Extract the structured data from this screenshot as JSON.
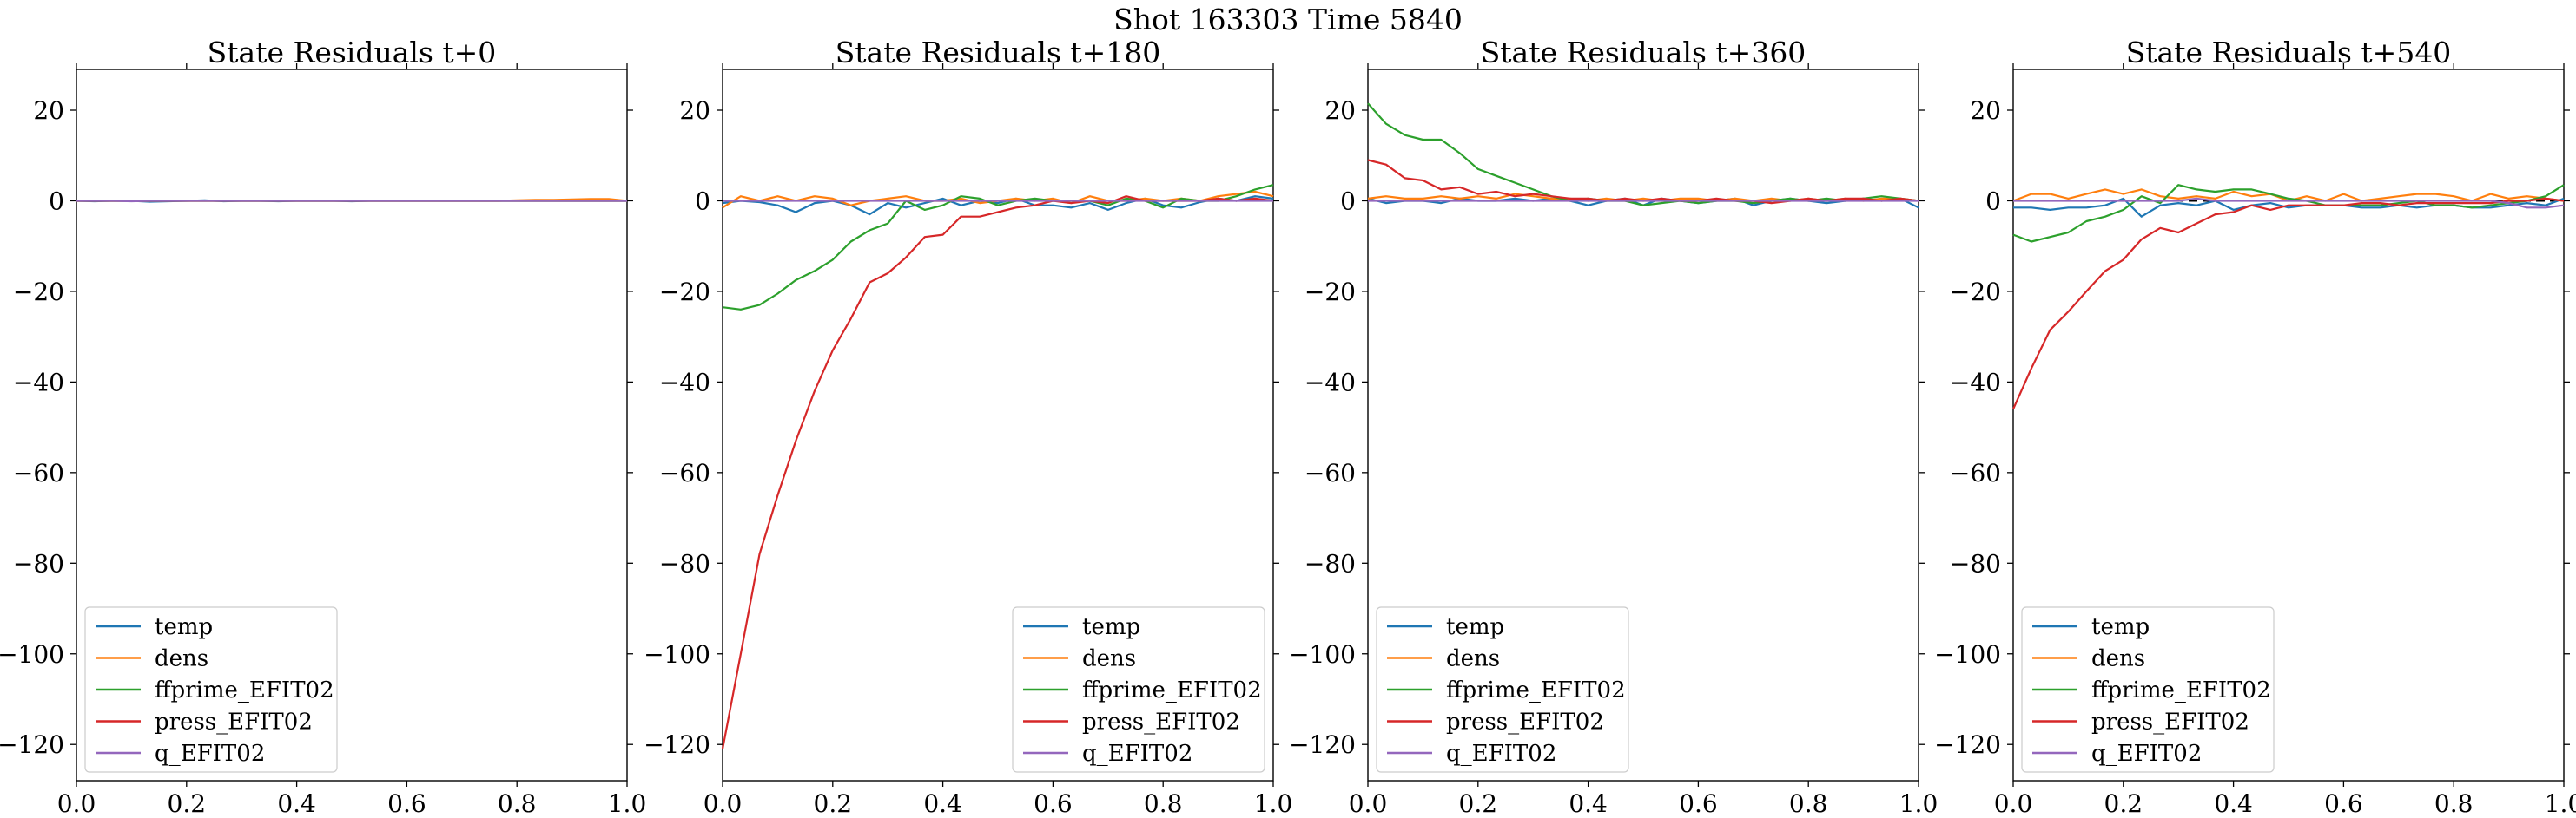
{
  "title": "Shot 163303   Time 5840",
  "chart_data": {
    "type": "line",
    "suptitle": "Shot 163303   Time 5840",
    "xlim": [
      0.0,
      1.0
    ],
    "ylim": [
      -128,
      29
    ],
    "xticks": [
      0.0,
      0.2,
      0.4,
      0.6,
      0.8,
      1.0
    ],
    "xtick_labels": [
      "0.0",
      "0.2",
      "0.4",
      "0.6",
      "0.8",
      "1.0"
    ],
    "yticks": [
      20,
      0,
      -20,
      -40,
      -60,
      -80,
      -100,
      -120
    ],
    "ytick_labels": [
      "20",
      "0",
      "−20",
      "−40",
      "−60",
      "−80",
      "−100",
      "−120"
    ],
    "series_colors": {
      "temp": "#1f77b4",
      "dens": "#ff7f0e",
      "ffprime_EFIT02": "#2ca02c",
      "press_EFIT02": "#d62728",
      "q_EFIT02": "#9467bd"
    },
    "panels": [
      {
        "title": "State Residuals t+0",
        "legend_position": "lower-left",
        "x": [
          0.0,
          0.033,
          0.067,
          0.1,
          0.133,
          0.167,
          0.2,
          0.233,
          0.267,
          0.3,
          0.333,
          0.367,
          0.4,
          0.433,
          0.467,
          0.5,
          0.533,
          0.567,
          0.6,
          0.633,
          0.667,
          0.7,
          0.733,
          0.767,
          0.8,
          0.833,
          0.867,
          0.9,
          0.933,
          0.967,
          1.0
        ],
        "series": [
          {
            "name": "temp",
            "values": [
              0.0,
              -0.1,
              0.0,
              0.0,
              -0.2,
              -0.1,
              0.0,
              0.1,
              -0.1,
              0.0,
              0.0,
              -0.1,
              0.0,
              0.0,
              0.0,
              -0.1,
              0.0,
              0.0,
              0.0,
              0.0,
              0.0,
              0.0,
              0.0,
              0.0,
              0.0,
              0.0,
              0.0,
              0.0,
              0.0,
              0.0,
              0.0
            ]
          },
          {
            "name": "dens",
            "values": [
              0.0,
              0.0,
              0.0,
              0.0,
              0.0,
              0.0,
              0.0,
              0.0,
              0.0,
              0.0,
              0.0,
              0.0,
              0.0,
              0.0,
              0.0,
              0.0,
              0.0,
              0.0,
              0.0,
              0.0,
              0.0,
              0.0,
              0.0,
              0.0,
              0.1,
              0.2,
              0.2,
              0.3,
              0.4,
              0.4,
              0.0
            ]
          },
          {
            "name": "ffprime_EFIT02",
            "values": [
              0.0,
              0.0,
              0.0,
              0.0,
              0.0,
              0.0,
              0.0,
              0.0,
              0.0,
              0.0,
              0.0,
              0.0,
              0.0,
              0.0,
              0.0,
              0.0,
              0.0,
              0.0,
              0.0,
              0.0,
              0.0,
              0.0,
              0.0,
              0.0,
              0.0,
              0.0,
              0.0,
              0.0,
              0.0,
              0.0,
              0.0
            ]
          },
          {
            "name": "press_EFIT02",
            "values": [
              0.0,
              0.0,
              0.0,
              0.0,
              0.0,
              0.0,
              0.0,
              0.0,
              0.0,
              0.0,
              0.0,
              0.0,
              0.0,
              0.0,
              0.0,
              0.0,
              0.0,
              0.0,
              0.0,
              0.0,
              0.0,
              0.0,
              0.0,
              0.0,
              0.0,
              0.0,
              0.0,
              0.0,
              0.0,
              0.0,
              0.0
            ]
          },
          {
            "name": "q_EFIT02",
            "values": [
              0.0,
              0.0,
              0.0,
              -0.1,
              0.0,
              0.0,
              0.0,
              0.0,
              0.0,
              0.0,
              0.0,
              0.0,
              0.0,
              0.0,
              0.0,
              0.0,
              0.0,
              0.0,
              0.0,
              0.0,
              0.0,
              0.0,
              0.0,
              0.0,
              0.0,
              0.0,
              0.0,
              0.0,
              0.0,
              0.0,
              0.0
            ]
          }
        ]
      },
      {
        "title": "State Residuals t+180",
        "legend_position": "lower-right",
        "x": [
          0.0,
          0.033,
          0.067,
          0.1,
          0.133,
          0.167,
          0.2,
          0.233,
          0.267,
          0.3,
          0.333,
          0.367,
          0.4,
          0.433,
          0.467,
          0.5,
          0.533,
          0.567,
          0.6,
          0.633,
          0.667,
          0.7,
          0.733,
          0.767,
          0.8,
          0.833,
          0.867,
          0.9,
          0.933,
          0.967,
          1.0
        ],
        "series": [
          {
            "name": "temp",
            "values": [
              -0.5,
              0.0,
              -0.3,
              -1.0,
              -2.5,
              -0.5,
              0.0,
              -1.0,
              -3.0,
              -0.5,
              -1.5,
              -0.5,
              0.5,
              -1.0,
              0.0,
              -0.5,
              0.5,
              -1.0,
              -1.0,
              -1.5,
              -0.5,
              -2.0,
              -0.5,
              0.5,
              -1.0,
              -1.5,
              -0.3,
              0.5,
              0.0,
              1.0,
              0.5
            ]
          },
          {
            "name": "dens",
            "values": [
              -1.5,
              1.0,
              0.0,
              1.0,
              0.0,
              1.0,
              0.5,
              -1.0,
              0.0,
              0.5,
              1.0,
              0.0,
              0.0,
              0.5,
              -0.5,
              0.0,
              0.5,
              0.0,
              0.5,
              -0.5,
              1.0,
              0.0,
              0.0,
              0.5,
              0.0,
              0.5,
              0.0,
              1.0,
              1.5,
              2.0,
              1.0
            ]
          },
          {
            "name": "ffprime_EFIT02",
            "values": [
              -23.5,
              -24.0,
              -23.0,
              -20.5,
              -17.5,
              -15.5,
              -13.0,
              -9.0,
              -6.5,
              -5.0,
              0.0,
              -2.0,
              -1.0,
              1.0,
              0.5,
              -1.0,
              0.0,
              0.5,
              0.0,
              0.0,
              0.0,
              -1.0,
              0.5,
              0.0,
              -1.5,
              0.5,
              0.0,
              0.0,
              1.0,
              2.5,
              3.5
            ]
          },
          {
            "name": "press_EFIT02",
            "values": [
              -121.0,
              -100.0,
              -78.0,
              -65.0,
              -53.0,
              -42.0,
              -33.0,
              -26.0,
              -18.0,
              -16.0,
              -12.5,
              -8.0,
              -7.5,
              -3.5,
              -3.5,
              -2.5,
              -1.5,
              -1.0,
              0.0,
              -0.5,
              0.0,
              -0.5,
              1.0,
              0.0,
              0.0,
              0.0,
              0.0,
              0.5,
              0.0,
              0.5,
              0.0
            ]
          },
          {
            "name": "q_EFIT02",
            "values": [
              0.0,
              0.0,
              0.0,
              0.0,
              0.0,
              0.0,
              0.0,
              0.0,
              0.0,
              0.0,
              0.0,
              0.0,
              0.0,
              0.0,
              0.0,
              0.0,
              0.0,
              0.0,
              0.0,
              0.0,
              0.0,
              0.0,
              0.0,
              0.0,
              0.0,
              0.0,
              0.0,
              0.0,
              0.0,
              0.0,
              0.0
            ]
          }
        ]
      },
      {
        "title": "State Residuals t+360",
        "legend_position": "lower-left",
        "x": [
          0.0,
          0.033,
          0.067,
          0.1,
          0.133,
          0.167,
          0.2,
          0.233,
          0.267,
          0.3,
          0.333,
          0.367,
          0.4,
          0.433,
          0.467,
          0.5,
          0.533,
          0.567,
          0.6,
          0.633,
          0.667,
          0.7,
          0.733,
          0.767,
          0.8,
          0.833,
          0.867,
          0.9,
          0.933,
          0.967,
          1.0
        ],
        "series": [
          {
            "name": "temp",
            "values": [
              0.5,
              -0.5,
              0.0,
              0.0,
              -0.5,
              0.5,
              0.0,
              0.0,
              0.5,
              0.0,
              0.5,
              0.0,
              -1.0,
              0.0,
              0.5,
              -1.0,
              0.5,
              0.0,
              -0.5,
              0.0,
              0.5,
              -1.0,
              0.0,
              0.5,
              0.0,
              -0.5,
              0.0,
              0.5,
              0.0,
              0.5,
              -1.5
            ]
          },
          {
            "name": "dens",
            "values": [
              0.5,
              1.0,
              0.5,
              0.5,
              1.0,
              0.5,
              1.0,
              0.5,
              1.5,
              1.0,
              0.5,
              0.5,
              0.0,
              0.5,
              0.0,
              0.5,
              0.0,
              0.5,
              0.5,
              0.0,
              0.5,
              0.0,
              0.5,
              0.0,
              0.5,
              0.0,
              0.5,
              0.0,
              0.5,
              0.5,
              0.0
            ]
          },
          {
            "name": "ffprime_EFIT02",
            "values": [
              21.5,
              17.0,
              14.5,
              13.5,
              13.5,
              10.5,
              7.0,
              5.5,
              4.0,
              2.5,
              1.0,
              0.0,
              0.5,
              0.0,
              0.0,
              -1.0,
              -0.5,
              0.0,
              -0.5,
              0.0,
              0.0,
              -0.5,
              0.0,
              0.5,
              0.0,
              0.5,
              0.0,
              0.5,
              1.0,
              0.5,
              0.0
            ]
          },
          {
            "name": "press_EFIT02",
            "values": [
              9.0,
              8.0,
              5.0,
              4.5,
              2.5,
              3.0,
              1.5,
              2.0,
              1.0,
              1.5,
              1.0,
              0.5,
              0.5,
              0.0,
              0.5,
              0.0,
              0.5,
              0.0,
              0.0,
              0.5,
              0.0,
              0.0,
              -0.5,
              0.0,
              0.5,
              0.0,
              0.5,
              0.5,
              0.0,
              0.5,
              0.0
            ]
          },
          {
            "name": "q_EFIT02",
            "values": [
              0.0,
              0.0,
              0.0,
              0.0,
              0.0,
              0.0,
              0.0,
              0.0,
              0.0,
              0.0,
              0.0,
              0.0,
              0.0,
              0.0,
              0.0,
              0.0,
              0.0,
              0.0,
              0.0,
              0.0,
              0.0,
              0.0,
              0.0,
              0.0,
              0.0,
              0.0,
              0.0,
              0.0,
              0.0,
              0.0,
              0.0
            ]
          }
        ]
      },
      {
        "title": "State Residuals t+540",
        "legend_position": "lower-left",
        "x": [
          0.0,
          0.033,
          0.067,
          0.1,
          0.133,
          0.167,
          0.2,
          0.233,
          0.267,
          0.3,
          0.333,
          0.367,
          0.4,
          0.433,
          0.467,
          0.5,
          0.533,
          0.567,
          0.6,
          0.633,
          0.667,
          0.7,
          0.733,
          0.767,
          0.8,
          0.833,
          0.867,
          0.9,
          0.933,
          0.967,
          1.0
        ],
        "series": [
          {
            "name": "temp",
            "values": [
              -1.5,
              -1.5,
              -2.0,
              -1.5,
              -1.5,
              -1.0,
              0.5,
              -3.5,
              -1.0,
              -0.5,
              -1.0,
              0.0,
              -2.0,
              -1.0,
              -0.5,
              -1.5,
              -1.0,
              -1.0,
              -1.0,
              -1.5,
              -1.5,
              -1.0,
              -1.5,
              -1.0,
              -1.0,
              -1.5,
              -1.5,
              -1.0,
              -0.5,
              -1.0,
              0.5
            ]
          },
          {
            "name": "dens",
            "values": [
              0.0,
              1.5,
              1.5,
              0.5,
              1.5,
              2.5,
              1.5,
              2.5,
              1.0,
              0.5,
              1.0,
              0.5,
              2.0,
              1.0,
              1.5,
              0.0,
              1.0,
              0.0,
              1.5,
              0.0,
              0.5,
              1.0,
              1.5,
              1.5,
              1.0,
              0.0,
              1.5,
              0.5,
              1.0,
              0.5,
              0.0
            ]
          },
          {
            "name": "ffprime_EFIT02",
            "values": [
              -7.5,
              -9.0,
              -8.0,
              -7.0,
              -4.5,
              -3.5,
              -2.0,
              1.0,
              -0.5,
              3.5,
              2.5,
              2.0,
              2.5,
              2.5,
              1.5,
              0.5,
              0.0,
              -1.0,
              -1.0,
              -1.0,
              -1.0,
              -0.5,
              0.0,
              -1.0,
              -1.0,
              -1.5,
              -1.0,
              -0.5,
              0.0,
              1.0,
              3.5
            ]
          },
          {
            "name": "press_EFIT02",
            "values": [
              -46.0,
              -37.0,
              -28.5,
              -24.5,
              -20.0,
              -15.5,
              -13.0,
              -8.5,
              -6.0,
              -7.0,
              -5.0,
              -3.0,
              -2.5,
              -1.0,
              -2.0,
              -1.0,
              -1.0,
              -1.0,
              -1.0,
              -0.5,
              -0.5,
              -1.0,
              -0.5,
              -0.5,
              -0.5,
              -0.5,
              -0.5,
              0.0,
              0.0,
              0.5,
              0.0
            ]
          },
          {
            "name": "q_EFIT02",
            "values": [
              0.0,
              0.0,
              0.0,
              0.0,
              0.0,
              0.0,
              0.0,
              0.0,
              0.0,
              0.0,
              0.5,
              0.0,
              0.0,
              0.0,
              0.0,
              0.0,
              0.0,
              0.0,
              0.0,
              0.0,
              0.0,
              0.0,
              0.0,
              0.0,
              0.0,
              0.0,
              0.0,
              -0.5,
              -1.5,
              -1.5,
              -1.0
            ]
          }
        ]
      }
    ]
  }
}
